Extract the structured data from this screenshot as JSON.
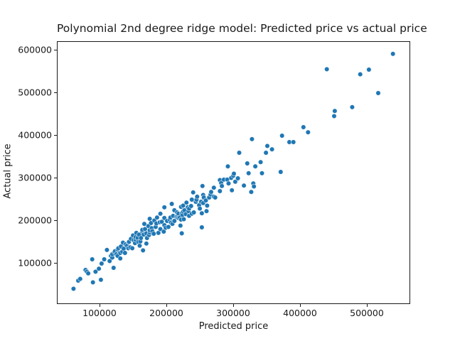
{
  "chart_data": {
    "type": "scatter",
    "title": "Polynomial 2nd degree ridge model: Predicted price vs actual price",
    "xlabel": "Predicted price",
    "ylabel": "Actual price",
    "marker_color": "#1f77b4",
    "grid": false,
    "legend": null,
    "xlim": [
      36170,
      564894
    ],
    "ylim": [
      3333,
      620000
    ],
    "x_ticks": [
      100000,
      200000,
      300000,
      400000,
      500000
    ],
    "y_ticks": [
      100000,
      200000,
      300000,
      400000,
      500000,
      600000
    ],
    "points": [
      [
        60000,
        41000
      ],
      [
        67000,
        60000
      ],
      [
        70000,
        64000
      ],
      [
        89000,
        56000
      ],
      [
        101000,
        62000
      ],
      [
        88000,
        110000
      ],
      [
        78000,
        85000
      ],
      [
        80000,
        81000
      ],
      [
        82000,
        77000
      ],
      [
        93000,
        81000
      ],
      [
        98000,
        88000
      ],
      [
        102000,
        100000
      ],
      [
        106000,
        110000
      ],
      [
        110000,
        132000
      ],
      [
        114000,
        106000
      ],
      [
        116000,
        118000
      ],
      [
        118000,
        114000
      ],
      [
        118000,
        122000
      ],
      [
        120000,
        90000
      ],
      [
        121000,
        127000
      ],
      [
        122000,
        129000
      ],
      [
        124000,
        122000
      ],
      [
        126000,
        133000
      ],
      [
        126000,
        118000
      ],
      [
        127000,
        136000
      ],
      [
        130000,
        112000
      ],
      [
        130000,
        125000
      ],
      [
        131000,
        140000
      ],
      [
        133000,
        128000
      ],
      [
        134000,
        149000
      ],
      [
        135000,
        135000
      ],
      [
        137000,
        125000
      ],
      [
        138000,
        145000
      ],
      [
        140000,
        142000
      ],
      [
        142000,
        136000
      ],
      [
        143000,
        150000
      ],
      [
        143000,
        151000
      ],
      [
        145000,
        138000
      ],
      [
        146000,
        158000
      ],
      [
        148000,
        136000
      ],
      [
        149000,
        166000
      ],
      [
        150000,
        155000
      ],
      [
        152000,
        148000
      ],
      [
        153000,
        156000
      ],
      [
        153000,
        162000
      ],
      [
        154000,
        172000
      ],
      [
        156000,
        160000
      ],
      [
        157000,
        151000
      ],
      [
        158000,
        168000
      ],
      [
        159000,
        142000
      ],
      [
        160000,
        152000
      ],
      [
        161000,
        160000
      ],
      [
        163000,
        175000
      ],
      [
        163000,
        179000
      ],
      [
        164000,
        131000
      ],
      [
        165000,
        168000
      ],
      [
        166000,
        193000
      ],
      [
        167000,
        181000
      ],
      [
        169000,
        147000
      ],
      [
        169000,
        171000
      ],
      [
        170000,
        160000
      ],
      [
        172000,
        188000
      ],
      [
        173000,
        167000
      ],
      [
        174000,
        173000
      ],
      [
        174000,
        178000
      ],
      [
        174000,
        205000
      ],
      [
        176000,
        195000
      ],
      [
        177000,
        183000
      ],
      [
        178000,
        176000
      ],
      [
        180000,
        170000
      ],
      [
        181000,
        201000
      ],
      [
        183000,
        186000
      ],
      [
        184000,
        194000
      ],
      [
        185000,
        208000
      ],
      [
        187000,
        172000
      ],
      [
        189000,
        197000
      ],
      [
        190000,
        181000
      ],
      [
        190000,
        217000
      ],
      [
        192000,
        198000
      ],
      [
        195000,
        175000
      ],
      [
        196000,
        190000
      ],
      [
        196000,
        207000
      ],
      [
        196000,
        232000
      ],
      [
        198000,
        184000
      ],
      [
        200000,
        200000
      ],
      [
        202000,
        186000
      ],
      [
        204000,
        203000
      ],
      [
        205000,
        208000
      ],
      [
        206000,
        196000
      ],
      [
        207000,
        240000
      ],
      [
        208000,
        193000
      ],
      [
        209000,
        212000
      ],
      [
        211000,
        200000
      ],
      [
        211000,
        225000
      ],
      [
        214000,
        210000
      ],
      [
        215000,
        220000
      ],
      [
        216000,
        211000
      ],
      [
        217000,
        217000
      ],
      [
        217000,
        207000
      ],
      [
        219000,
        208000
      ],
      [
        220000,
        189000
      ],
      [
        221000,
        203000
      ],
      [
        221000,
        233000
      ],
      [
        222000,
        171000
      ],
      [
        222000,
        218000
      ],
      [
        223000,
        214000
      ],
      [
        224000,
        236000
      ],
      [
        224000,
        222000
      ],
      [
        225000,
        204000
      ],
      [
        226000,
        225000
      ],
      [
        228000,
        216000
      ],
      [
        229000,
        243000
      ],
      [
        231000,
        232000
      ],
      [
        232000,
        223000
      ],
      [
        233000,
        212000
      ],
      [
        233000,
        229000
      ],
      [
        236000,
        235000
      ],
      [
        237000,
        250000
      ],
      [
        237000,
        217000
      ],
      [
        239000,
        267000
      ],
      [
        240000,
        220000
      ],
      [
        243000,
        245000
      ],
      [
        244000,
        250000
      ],
      [
        245000,
        257000
      ],
      [
        248000,
        237000
      ],
      [
        249000,
        229000
      ],
      [
        251000,
        245000
      ],
      [
        252000,
        218000
      ],
      [
        252000,
        185000
      ],
      [
        253000,
        282000
      ],
      [
        254000,
        242000
      ],
      [
        254000,
        261000
      ],
      [
        255000,
        255000
      ],
      [
        258000,
        248000
      ],
      [
        259000,
        223000
      ],
      [
        260000,
        236000
      ],
      [
        263000,
        255000
      ],
      [
        265000,
        262000
      ],
      [
        266000,
        268000
      ],
      [
        270000,
        257000
      ],
      [
        270000,
        278000
      ],
      [
        272000,
        255000
      ],
      [
        279000,
        270000
      ],
      [
        279000,
        296000
      ],
      [
        281000,
        289000
      ],
      [
        282000,
        282000
      ],
      [
        285000,
        297000
      ],
      [
        290000,
        297000
      ],
      [
        291000,
        328000
      ],
      [
        292000,
        288000
      ],
      [
        296000,
        301000
      ],
      [
        297000,
        272000
      ],
      [
        299000,
        306000
      ],
      [
        300000,
        311000
      ],
      [
        302000,
        292000
      ],
      [
        306000,
        300000
      ],
      [
        308000,
        360000
      ],
      [
        315000,
        283000
      ],
      [
        320000,
        335000
      ],
      [
        322000,
        312000
      ],
      [
        326000,
        268000
      ],
      [
        327000,
        392000
      ],
      [
        329000,
        288000
      ],
      [
        330000,
        281000
      ],
      [
        332000,
        328000
      ],
      [
        340000,
        338000
      ],
      [
        342000,
        312000
      ],
      [
        348000,
        360000
      ],
      [
        350000,
        376000
      ],
      [
        357000,
        368000
      ],
      [
        370000,
        315000
      ],
      [
        372000,
        400000
      ],
      [
        383000,
        385000
      ],
      [
        389000,
        385000
      ],
      [
        404000,
        420000
      ],
      [
        411000,
        408000
      ],
      [
        439000,
        556000
      ],
      [
        450000,
        446000
      ],
      [
        451000,
        458000
      ],
      [
        477000,
        467000
      ],
      [
        489000,
        544000
      ],
      [
        502000,
        555000
      ],
      [
        516000,
        500000
      ],
      [
        538000,
        592000
      ]
    ]
  }
}
